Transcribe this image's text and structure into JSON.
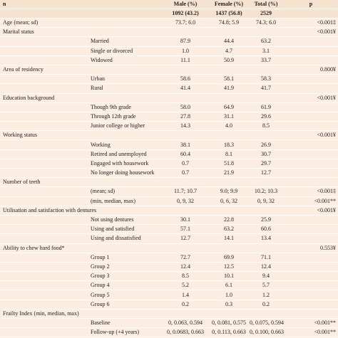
{
  "header": {
    "columns": [
      "n",
      "Male (%)",
      "Female (%)",
      "Total (%)",
      "p"
    ],
    "counts": [
      "1092 (43.2)",
      "1437 (56.8)",
      "2529"
    ]
  },
  "rows": [
    {
      "category": "Age (mean; sd)",
      "male": "73.7; 6.0",
      "female": "74.8; 5.9",
      "total": "74.3; 6.0",
      "p": "<0.001‡"
    },
    {
      "category": "Marital status",
      "p": "<0.001¥"
    },
    {
      "label": "Married",
      "male": "87.9",
      "female": "44.4",
      "total": "63.2"
    },
    {
      "label": "Single or divorced",
      "male": "1.0",
      "female": "4.7",
      "total": "3.1"
    },
    {
      "label": "Widowed",
      "male": "11.1",
      "female": "50.9",
      "total": "33.7"
    },
    {
      "category": "Area of residency",
      "p": "0.800¥"
    },
    {
      "label": "Urban",
      "male": "58.6",
      "female": "58.1",
      "total": "58.3"
    },
    {
      "label": "Rural",
      "male": "41.4",
      "female": "41.9",
      "total": "41.7"
    },
    {
      "category": "Education background",
      "p": "<0.001¥"
    },
    {
      "label": "Though 9th grade",
      "male": "58.0",
      "female": "64.9",
      "total": "61.9"
    },
    {
      "label": "Through 12th grade",
      "male": "27.8",
      "female": "31.1",
      "total": "29.6"
    },
    {
      "label": "Junior college or higher",
      "male": "14.3",
      "female": "4.0",
      "total": "8.5"
    },
    {
      "category": "Working status",
      "p": "<0.001¥"
    },
    {
      "label": "Working",
      "male": "38.1",
      "female": "18.3",
      "total": "26.9"
    },
    {
      "label": "Retired and unemployed",
      "male": "60.4",
      "female": "8.1",
      "total": "30.7"
    },
    {
      "label": "Engaged with housework",
      "male": "0.7",
      "female": "51.8",
      "total": "29.7"
    },
    {
      "label": "No longer doing housework",
      "male": "0.7",
      "female": "21.9",
      "total": "12.7"
    },
    {
      "category": "Number of teeth"
    },
    {
      "label": "(mean; sd)",
      "male": "11.7; 10.7",
      "female": "9.0; 9.9",
      "total": "10.2; 10.3",
      "p": "<0.001‡"
    },
    {
      "label": "(min, median, max)",
      "male": "0, 9, 32",
      "female": "0, 6, 32",
      "total": "0, 9, 32",
      "p": "<0.001**"
    },
    {
      "category": "Utilisation and satisfaction with dentures",
      "p": "<0.001¥"
    },
    {
      "label": "Not using dentures",
      "male": "30.1",
      "female": "22.8",
      "total": "25.9"
    },
    {
      "label": "Using and satisfied",
      "male": "57.1",
      "female": "63.2",
      "total": "60.6"
    },
    {
      "label": "Using and dissatisfied",
      "male": "12.7",
      "female": "14.1",
      "total": "13.4"
    },
    {
      "category": "Ability to chew hard food*",
      "p": "0.553¥"
    },
    {
      "label": "Group 1",
      "male": "72.7",
      "female": "69.9",
      "total": "71.1"
    },
    {
      "label": "Group 2",
      "male": "12.4",
      "female": "12.5",
      "total": "12.4"
    },
    {
      "label": "Group 3",
      "male": "8.5",
      "female": "10.1",
      "total": "9.4"
    },
    {
      "label": "Group 4",
      "male": "5.2",
      "female": "6.1",
      "total": "5.7"
    },
    {
      "label": "Group 5",
      "male": "1.4",
      "female": "1.0",
      "total": "1.2"
    },
    {
      "label": "Group 6",
      "male": "0.2",
      "female": "0.3",
      "total": "0.2"
    },
    {
      "category": "Frailty Index (min, median, max)"
    },
    {
      "label": "Baseline",
      "male": "0, 0.063, 0.594",
      "female": "0, 0.081, 0.575",
      "total": "0, 0.075, 0.594",
      "p": "<0.001**"
    },
    {
      "label": "Follow-up (+4 years)",
      "male": "0, 0.0683, 0.663",
      "female": "0, 0.113, 0.663",
      "total": "0, 0.100, 0.663",
      "p": "<0.001**"
    }
  ]
}
